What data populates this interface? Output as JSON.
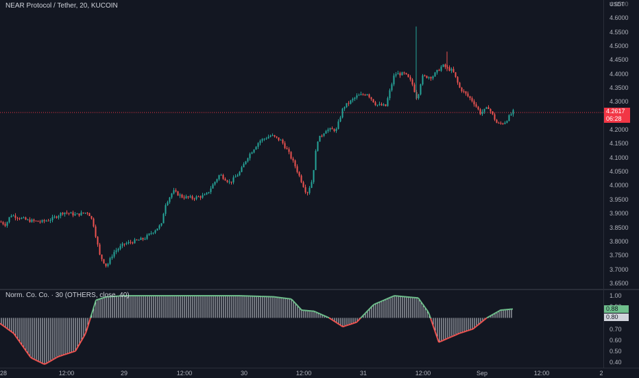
{
  "header": {
    "symbol_title": "NEAR Protocol / Tether, 20, KUCOIN"
  },
  "price_axis": {
    "unit": "USDT",
    "ticks": [
      "4.6500",
      "4.6000",
      "4.5500",
      "4.5000",
      "4.4500",
      "4.4000",
      "4.3500",
      "4.3000",
      "4.2500",
      "4.2000",
      "4.1500",
      "4.1000",
      "4.0500",
      "4.0000",
      "3.9500",
      "3.9000",
      "3.8500",
      "3.8000",
      "3.7500",
      "3.7000",
      "3.6500"
    ],
    "last_price": "4.2617",
    "countdown": "06:28"
  },
  "indicator": {
    "legend": "Norm. Co. Co. · 30 (OTHERS, close, 40)",
    "ticks": [
      "1.00",
      "0.90",
      "0.80",
      "0.70",
      "0.60",
      "0.50",
      "0.40"
    ],
    "value_1": "0.88",
    "value_2": "0.80"
  },
  "time_axis": {
    "ticks": [
      "28",
      "12:00",
      "29",
      "12:00",
      "30",
      "12:00",
      "31",
      "12:00",
      "Sep",
      "12:00",
      "2"
    ]
  },
  "colors": {
    "up": "#26a69a",
    "down": "#ef5350",
    "background": "#131722",
    "price_tag": "#f23645",
    "indicator_positive": "#6fbf8c",
    "indicator_negative": "#ef5350"
  },
  "chart_data": {
    "type": "candlestick",
    "symbol": "NEAR/USDT",
    "interval": "20",
    "exchange": "KUCOIN",
    "y_range": [
      3.63,
      4.665
    ],
    "price_path": [
      [
        0,
        3.87
      ],
      [
        8,
        3.86
      ],
      [
        15,
        3.895
      ],
      [
        40,
        3.875
      ],
      [
        60,
        3.87
      ],
      [
        75,
        3.88
      ],
      [
        92,
        3.905
      ],
      [
        110,
        3.895
      ],
      [
        128,
        3.905
      ],
      [
        135,
        3.87
      ],
      [
        145,
        3.75
      ],
      [
        155,
        3.71
      ],
      [
        165,
        3.76
      ],
      [
        180,
        3.79
      ],
      [
        210,
        3.81
      ],
      [
        235,
        3.86
      ],
      [
        240,
        3.93
      ],
      [
        252,
        3.98
      ],
      [
        265,
        3.96
      ],
      [
        280,
        3.955
      ],
      [
        300,
        3.965
      ],
      [
        320,
        4.04
      ],
      [
        335,
        4.01
      ],
      [
        350,
        4.05
      ],
      [
        360,
        4.1
      ],
      [
        378,
        4.16
      ],
      [
        395,
        4.18
      ],
      [
        410,
        4.16
      ],
      [
        420,
        4.12
      ],
      [
        430,
        4.07
      ],
      [
        447,
        3.97
      ],
      [
        455,
        4.02
      ],
      [
        462,
        4.16
      ],
      [
        475,
        4.2
      ],
      [
        490,
        4.2
      ],
      [
        500,
        4.28
      ],
      [
        520,
        4.32
      ],
      [
        535,
        4.33
      ],
      [
        548,
        4.29
      ],
      [
        562,
        4.285
      ],
      [
        575,
        4.4
      ],
      [
        590,
        4.4
      ],
      [
        600,
        4.37
      ],
      [
        608,
        4.31
      ],
      [
        615,
        4.39
      ],
      [
        630,
        4.39
      ],
      [
        645,
        4.43
      ],
      [
        660,
        4.41
      ],
      [
        670,
        4.35
      ],
      [
        690,
        4.3
      ],
      [
        700,
        4.26
      ],
      [
        712,
        4.28
      ],
      [
        725,
        4.22
      ],
      [
        735,
        4.225
      ],
      [
        748,
        4.265
      ]
    ],
    "spike_high": 4.57,
    "indicator_range": [
      0.35,
      1.05
    ],
    "indicator_baseline": 0.8,
    "indicator_path": [
      [
        0,
        0.75
      ],
      [
        20,
        0.66
      ],
      [
        45,
        0.44
      ],
      [
        65,
        0.38
      ],
      [
        85,
        0.45
      ],
      [
        110,
        0.5
      ],
      [
        125,
        0.66
      ],
      [
        140,
        0.96
      ],
      [
        155,
        0.99
      ],
      [
        180,
        1.0
      ],
      [
        260,
        1.0
      ],
      [
        350,
        1.0
      ],
      [
        400,
        0.99
      ],
      [
        425,
        0.97
      ],
      [
        440,
        0.87
      ],
      [
        458,
        0.86
      ],
      [
        480,
        0.8
      ],
      [
        500,
        0.72
      ],
      [
        520,
        0.76
      ],
      [
        545,
        0.92
      ],
      [
        575,
        1.0
      ],
      [
        610,
        0.98
      ],
      [
        625,
        0.85
      ],
      [
        640,
        0.58
      ],
      [
        670,
        0.66
      ],
      [
        690,
        0.7
      ],
      [
        710,
        0.8
      ],
      [
        730,
        0.87
      ],
      [
        748,
        0.88
      ]
    ]
  }
}
